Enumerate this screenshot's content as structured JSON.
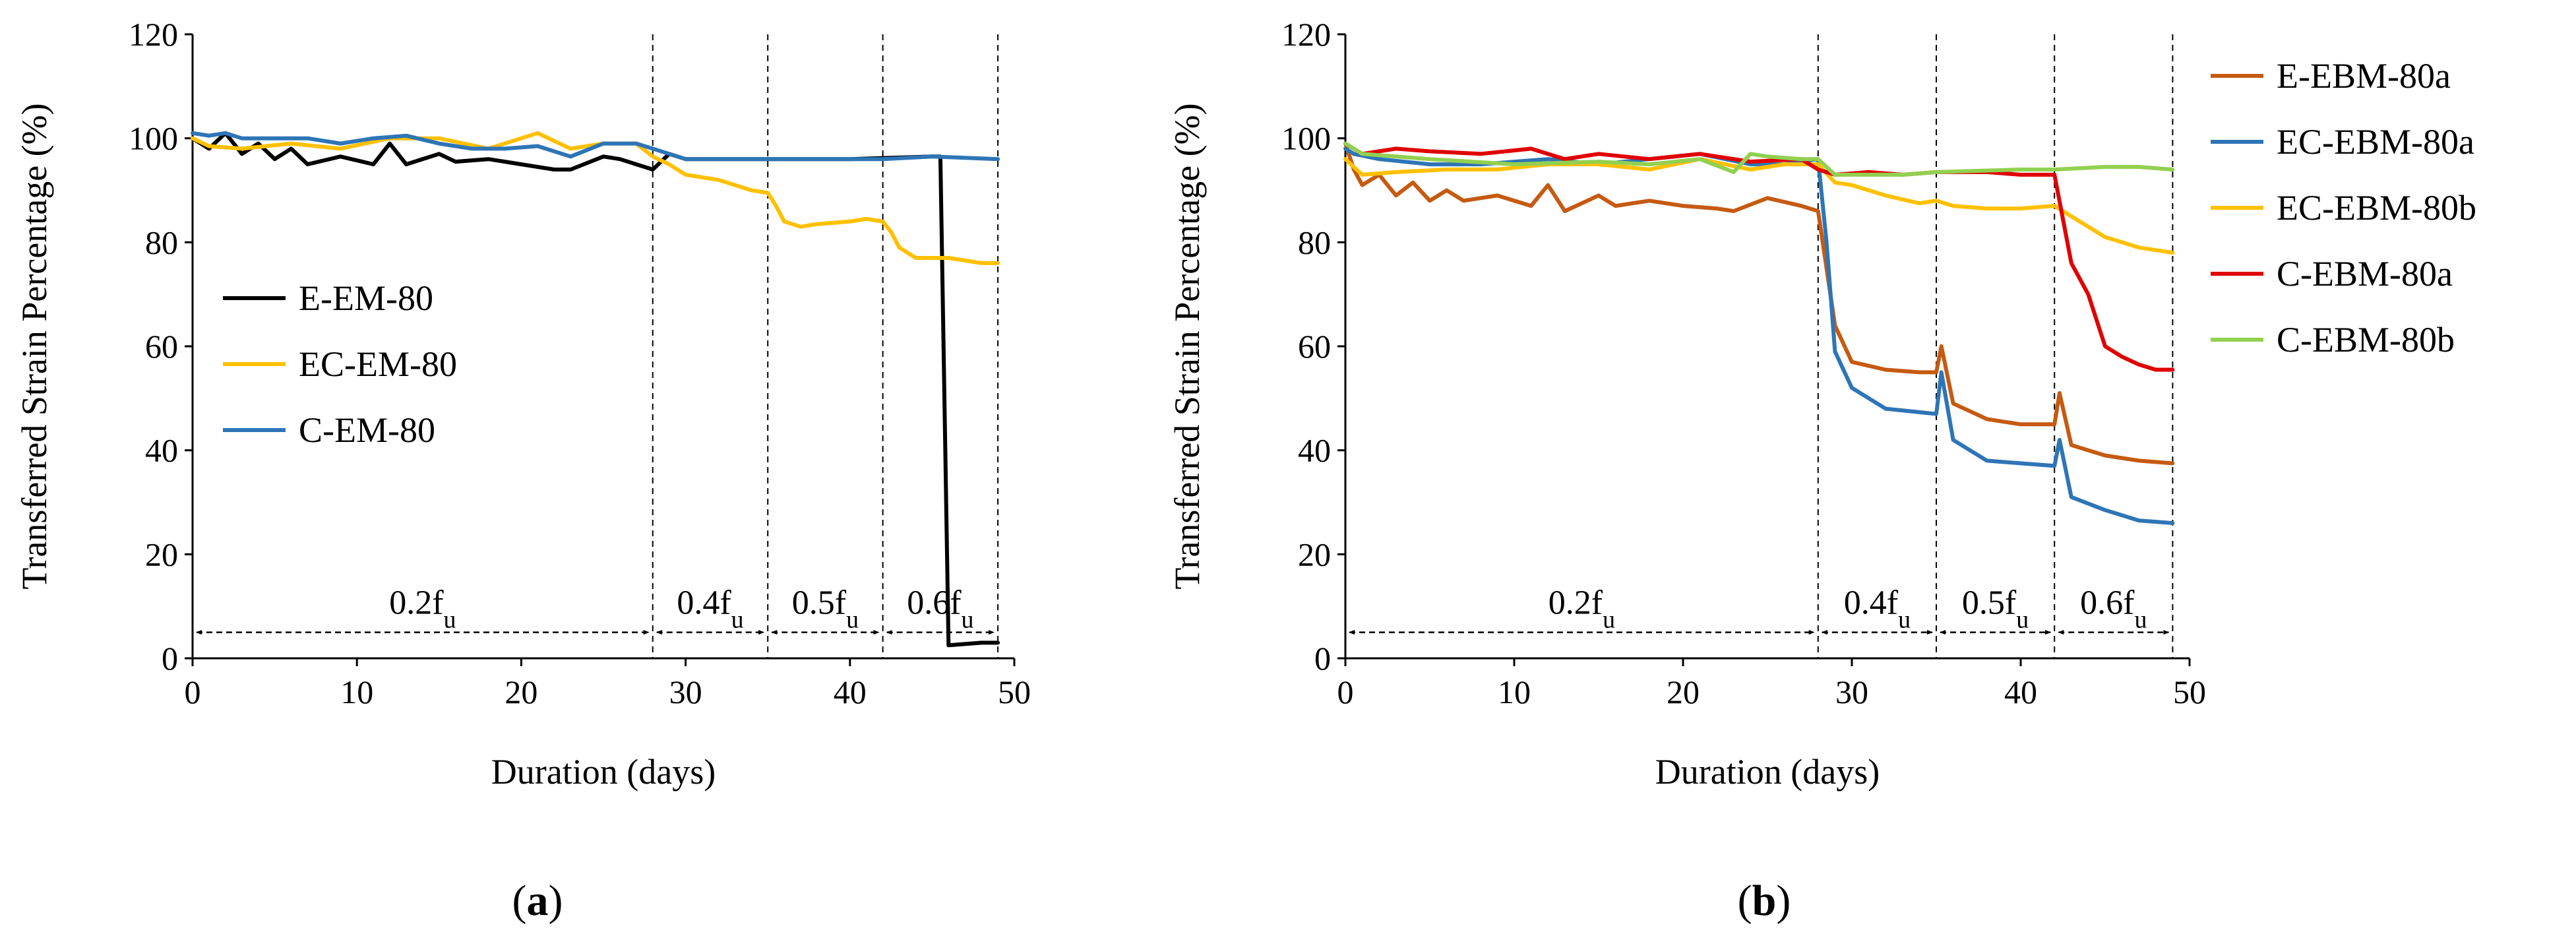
{
  "chart_data": [
    {
      "id": "a",
      "type": "line",
      "caption_open": "(",
      "caption_letter": "a",
      "caption_close": ")",
      "xlabel": "Duration (days)",
      "ylabel": "Transferred Strain Percentage (%)",
      "xlim": [
        0,
        50
      ],
      "ylim": [
        0,
        120
      ],
      "xticks": [
        "0",
        "10",
        "20",
        "30",
        "40",
        "50"
      ],
      "yticks": [
        "0",
        "20",
        "40",
        "60",
        "80",
        "100",
        "120"
      ],
      "grid": false,
      "legend_position": "left-middle",
      "phase_boundaries": [
        28,
        35,
        42,
        49
      ],
      "phases": [
        {
          "from": 0,
          "to": 28,
          "main": "0.2f",
          "sub": "u"
        },
        {
          "from": 28,
          "to": 35,
          "main": "0.4f",
          "sub": "u"
        },
        {
          "from": 35,
          "to": 42,
          "main": "0.5f",
          "sub": "u"
        },
        {
          "from": 42,
          "to": 49,
          "main": "0.6f",
          "sub": "u"
        }
      ],
      "series": [
        {
          "name": "E-EM-80",
          "color": "#000000",
          "x": [
            0,
            1,
            2,
            3,
            4,
            5,
            6,
            7,
            9,
            11,
            12,
            13,
            15,
            16,
            18,
            20,
            22,
            23,
            25,
            26,
            27,
            28,
            29,
            30,
            35,
            40,
            45,
            45.5,
            46,
            48,
            49
          ],
          "y": [
            100,
            98,
            101,
            97,
            99,
            96,
            98,
            95,
            96.5,
            95,
            99,
            95,
            97,
            95.5,
            96,
            95,
            94,
            94,
            96.5,
            96,
            95,
            94,
            97,
            96,
            96,
            96,
            96.5,
            96.5,
            2.5,
            3,
            3
          ]
        },
        {
          "name": "EC-EM-80",
          "color": "#FFC000",
          "x": [
            0,
            1,
            3,
            6,
            9,
            12,
            15,
            18,
            21,
            23,
            25,
            27,
            28,
            29,
            30,
            32,
            34,
            35,
            35.5,
            36,
            37,
            38,
            40,
            41,
            42,
            42.5,
            43,
            44,
            46,
            48,
            49
          ],
          "y": [
            100,
            98.5,
            98,
            99,
            98,
            100,
            100,
            98,
            101,
            98,
            99,
            99,
            96.5,
            95,
            93,
            92,
            90,
            89.5,
            87,
            84,
            83,
            83.5,
            84,
            84.5,
            84,
            82,
            79,
            77,
            77,
            76,
            76
          ]
        },
        {
          "name": "C-EM-80",
          "color": "#2E75B6",
          "x": [
            0,
            1,
            2,
            3,
            5,
            7,
            9,
            11,
            13,
            15,
            17,
            19,
            21,
            23,
            25,
            27,
            28,
            30,
            33,
            35,
            38,
            42,
            45,
            49
          ],
          "y": [
            101,
            100.5,
            101,
            100,
            100,
            100,
            99,
            100,
            100.5,
            99,
            98,
            98,
            98.5,
            96.5,
            99,
            99,
            98,
            96,
            96,
            96,
            96,
            96,
            96.5,
            96
          ]
        }
      ]
    },
    {
      "id": "b",
      "type": "line",
      "caption_open": "(",
      "caption_letter": "b",
      "caption_close": ")",
      "xlabel": "Duration (days)",
      "ylabel": "Transferred Strain Percentage (%)",
      "xlim": [
        0,
        50
      ],
      "ylim": [
        0,
        120
      ],
      "xticks": [
        "0",
        "10",
        "20",
        "30",
        "40",
        "50"
      ],
      "yticks": [
        "0",
        "20",
        "40",
        "60",
        "80",
        "100",
        "120"
      ],
      "grid": false,
      "legend_position": "right",
      "phase_boundaries": [
        28,
        35,
        42,
        49
      ],
      "phases": [
        {
          "from": 0,
          "to": 28,
          "main": "0.2f",
          "sub": "u"
        },
        {
          "from": 28,
          "to": 35,
          "main": "0.4f",
          "sub": "u"
        },
        {
          "from": 35,
          "to": 42,
          "main": "0.5f",
          "sub": "u"
        },
        {
          "from": 42,
          "to": 49,
          "main": "0.6f",
          "sub": "u"
        }
      ],
      "series": [
        {
          "name": "E-EBM-80a",
          "color": "#C55A11",
          "x": [
            0,
            0.5,
            1,
            2,
            3,
            4,
            5,
            6,
            7,
            9,
            11,
            12,
            13,
            15,
            16,
            18,
            20,
            22,
            23,
            25,
            27,
            28,
            29,
            30,
            32,
            34,
            35,
            35.3,
            36,
            38,
            40,
            42,
            42.3,
            43,
            45,
            47,
            49
          ],
          "y": [
            99,
            94,
            91,
            93,
            89,
            91.5,
            88,
            90,
            88,
            89,
            87,
            91,
            86,
            89,
            87,
            88,
            87,
            86.5,
            86,
            88.5,
            87,
            86,
            64,
            57,
            55.5,
            55,
            55,
            60,
            49,
            46,
            45,
            45,
            51,
            41,
            39,
            38,
            37.5
          ]
        },
        {
          "name": "EC-EBM-80a",
          "color": "#2E75B6",
          "x": [
            0,
            0.5,
            2,
            5,
            8,
            12,
            15,
            18,
            21,
            24,
            26,
            28,
            28.5,
            29,
            30,
            32,
            35,
            35.3,
            36,
            38,
            40,
            42,
            42.3,
            43,
            45,
            47,
            49
          ],
          "y": [
            98,
            97,
            96,
            95,
            95,
            96,
            95,
            96,
            97,
            95,
            95,
            96,
            80,
            59,
            52,
            48,
            47,
            55,
            42,
            38,
            37.5,
            37,
            42,
            31,
            28.5,
            26.5,
            26
          ]
        },
        {
          "name": "EC-EBM-80b",
          "color": "#FFC000",
          "x": [
            0,
            1,
            3,
            6,
            9,
            12,
            15,
            18,
            21,
            24,
            26,
            28,
            29,
            30,
            32,
            34,
            35,
            36,
            38,
            40,
            42,
            43,
            44,
            45,
            46,
            47,
            49
          ],
          "y": [
            96,
            93,
            93.5,
            94,
            94,
            95,
            95,
            94,
            96,
            94,
            95,
            95,
            91.5,
            91,
            89,
            87.5,
            88,
            87,
            86.5,
            86.5,
            87,
            85,
            83,
            81,
            80,
            79,
            78
          ]
        },
        {
          "name": "C-EBM-80a",
          "color": "#E00000",
          "x": [
            0,
            1,
            3,
            5,
            8,
            11,
            13,
            15,
            18,
            21,
            24,
            27,
            28,
            29,
            31,
            33,
            35,
            38,
            40,
            42,
            43,
            44,
            45,
            46,
            47,
            48,
            49
          ],
          "y": [
            99,
            97,
            98,
            97.5,
            97,
            98,
            96,
            97,
            96,
            97,
            95.5,
            96,
            94,
            93,
            93.5,
            93,
            93.5,
            93.5,
            93,
            93,
            76,
            70,
            60,
            58,
            56.5,
            55.5,
            55.5
          ]
        },
        {
          "name": "C-EBM-80b",
          "color": "#92D050",
          "x": [
            0,
            1,
            5,
            10,
            15,
            18,
            21,
            23,
            24,
            25,
            27,
            28,
            29,
            33,
            35,
            40,
            42,
            45,
            47,
            49
          ],
          "y": [
            99,
            97,
            96,
            95,
            95.5,
            95,
            96,
            93.5,
            97,
            96.5,
            96,
            96,
            93,
            93,
            93.5,
            94,
            94,
            94.5,
            94.5,
            94
          ]
        }
      ]
    }
  ]
}
